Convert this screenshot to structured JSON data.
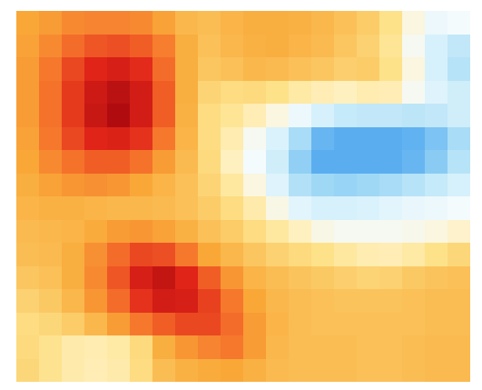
{
  "chart_data": {
    "type": "heatmap",
    "tick_labels": false,
    "color_range": [
      -5,
      6
    ],
    "cells": [
      [
        3.0,
        3.2,
        3.5,
        3.6,
        3.6,
        3.5,
        3.1,
        2.5,
        2.3,
        2.6,
        2.8,
        2.8,
        2.7,
        2.5,
        2.2,
        1.8,
        1.0,
        -0.5,
        -1.2,
        -1.0
      ],
      [
        3.1,
        3.5,
        4.0,
        4.3,
        4.4,
        4.2,
        3.7,
        2.8,
        2.2,
        2.5,
        2.7,
        2.8,
        2.6,
        2.4,
        2.0,
        1.6,
        0.8,
        -0.8,
        -1.8,
        -2.3
      ],
      [
        3.2,
        3.8,
        4.5,
        5.0,
        5.2,
        4.9,
        4.0,
        2.8,
        2.0,
        2.2,
        2.5,
        2.4,
        2.2,
        2.0,
        1.7,
        1.8,
        1.0,
        -0.5,
        -1.8,
        -2.5
      ],
      [
        3.2,
        3.9,
        4.7,
        5.4,
        5.8,
        5.3,
        4.2,
        2.8,
        1.5,
        1.2,
        1.3,
        1.0,
        0.5,
        0.2,
        0.0,
        0.3,
        0.2,
        -0.8,
        -1.6,
        -2.0
      ],
      [
        3.2,
        3.9,
        4.7,
        5.5,
        6.0,
        5.3,
        4.2,
        2.7,
        1.2,
        0.8,
        0.2,
        -0.5,
        -1.2,
        -1.8,
        -2.2,
        -2.3,
        -2.3,
        -2.4,
        -2.3,
        -2.0
      ],
      [
        3.1,
        3.8,
        4.5,
        5.0,
        5.1,
        4.8,
        3.8,
        2.6,
        1.2,
        0.3,
        -0.8,
        -1.7,
        -2.8,
        -3.8,
        -4.0,
        -4.0,
        -4.0,
        -3.9,
        -3.5,
        -2.8
      ],
      [
        3.0,
        3.5,
        3.9,
        4.2,
        4.2,
        3.9,
        3.2,
        2.4,
        1.3,
        0.0,
        -1.0,
        -2.0,
        -3.2,
        -4.0,
        -4.0,
        -4.0,
        -4.0,
        -3.8,
        -3.3,
        -2.5
      ],
      [
        2.8,
        3.1,
        3.3,
        3.4,
        3.3,
        3.0,
        2.6,
        2.2,
        1.5,
        0.6,
        -0.5,
        -1.6,
        -2.6,
        -3.0,
        -3.1,
        -3.0,
        -2.8,
        -2.5,
        -2.2,
        -1.8
      ],
      [
        2.6,
        2.7,
        2.7,
        2.6,
        2.5,
        2.5,
        2.4,
        2.2,
        1.8,
        1.2,
        0.4,
        -0.6,
        -1.5,
        -1.8,
        -1.8,
        -1.7,
        -1.5,
        -1.3,
        -1.2,
        -1.0
      ],
      [
        2.4,
        2.5,
        2.6,
        2.9,
        3.2,
        3.3,
        3.1,
        2.7,
        2.2,
        1.8,
        1.2,
        0.6,
        0.0,
        -0.6,
        -0.8,
        -0.8,
        -0.8,
        -0.7,
        -0.5,
        -0.2
      ],
      [
        2.3,
        2.4,
        2.8,
        3.4,
        4.0,
        4.5,
        4.4,
        3.8,
        3.0,
        2.5,
        2.0,
        1.6,
        1.3,
        1.0,
        0.6,
        0.3,
        0.2,
        0.5,
        1.0,
        1.4
      ],
      [
        2.0,
        2.2,
        2.8,
        3.5,
        4.3,
        5.2,
        5.6,
        5.0,
        4.2,
        3.3,
        2.6,
        2.3,
        2.1,
        1.9,
        1.7,
        1.5,
        1.6,
        1.9,
        2.1,
        2.2
      ],
      [
        1.6,
        1.9,
        2.5,
        3.3,
        4.0,
        4.8,
        5.3,
        5.2,
        4.6,
        3.8,
        3.0,
        2.5,
        2.3,
        2.2,
        2.1,
        2.1,
        2.1,
        2.2,
        2.3,
        2.3
      ],
      [
        1.2,
        1.4,
        1.8,
        2.5,
        3.2,
        3.8,
        4.2,
        4.5,
        4.5,
        4.0,
        3.2,
        2.6,
        2.3,
        2.2,
        2.2,
        2.2,
        2.2,
        2.2,
        2.3,
        2.3
      ],
      [
        1.3,
        0.9,
        0.4,
        0.3,
        0.5,
        1.3,
        2.8,
        3.3,
        3.6,
        3.8,
        3.2,
        2.5,
        2.3,
        2.3,
        2.3,
        2.2,
        2.2,
        2.3,
        2.4,
        2.4
      ],
      [
        1.4,
        0.9,
        0.4,
        0.2,
        0.4,
        1.2,
        2.3,
        2.7,
        2.9,
        3.0,
        2.7,
        2.4,
        2.3,
        2.3,
        2.3,
        2.2,
        2.2,
        2.3,
        2.4,
        2.4
      ]
    ]
  }
}
